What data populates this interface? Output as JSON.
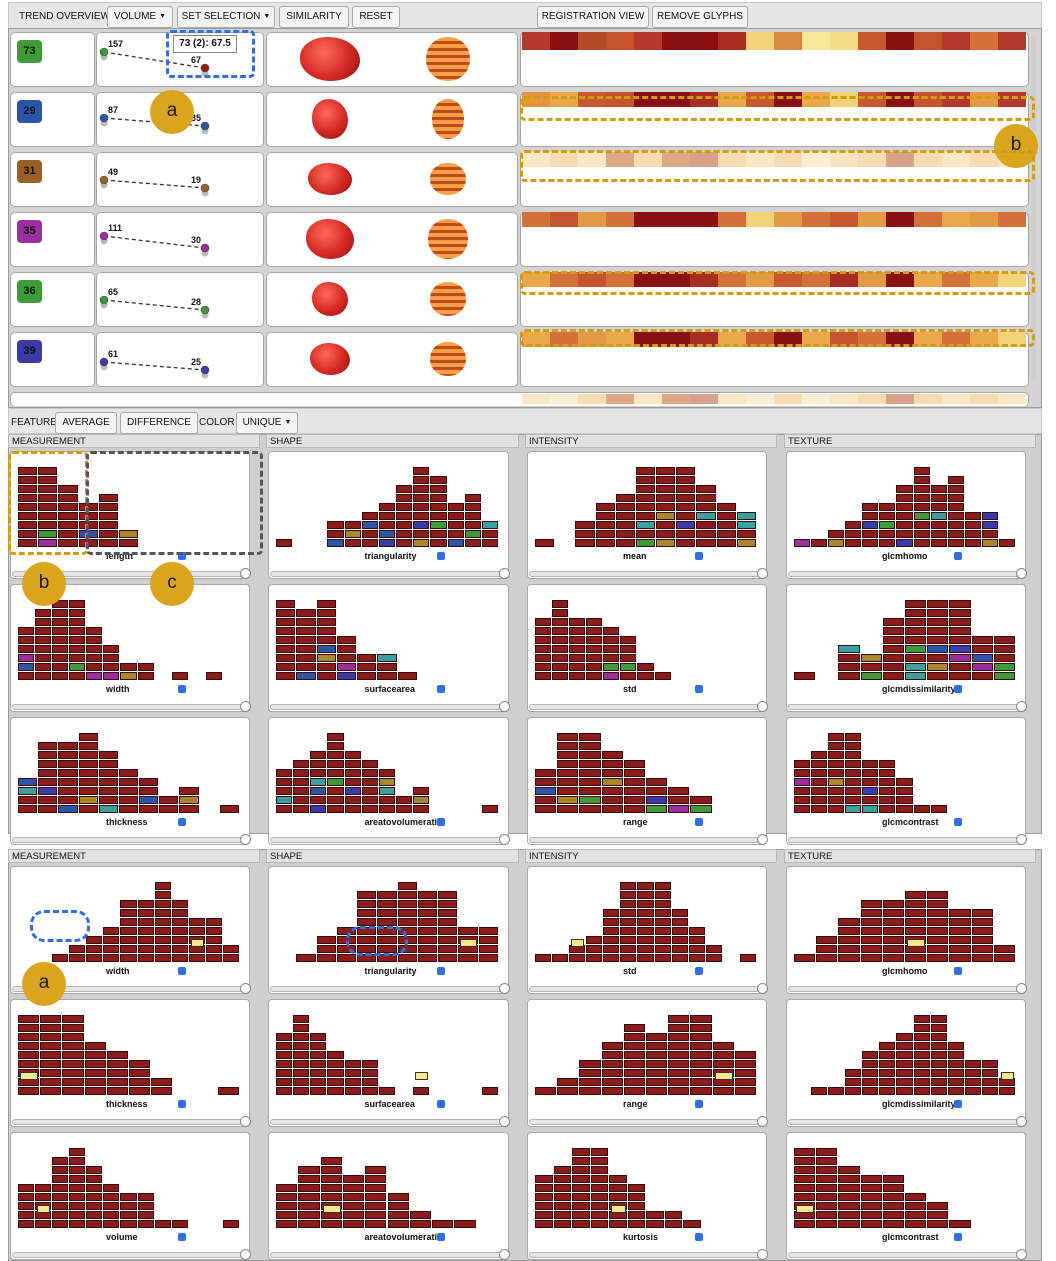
{
  "toolbar": {
    "title": "TREND OVERVIEW",
    "volume": "VOLUME",
    "set_selection": "SET SELECTION",
    "similarity": "SIMILARITY",
    "reset": "RESET",
    "registration_view": "REGISTRATION VIEW",
    "remove_glyphs": "REMOVE GLYPHS"
  },
  "trend_rows": [
    {
      "id": "73",
      "color": "#3f9a3a",
      "start": "157",
      "end": "67"
    },
    {
      "id": "29",
      "color": "#2c54a8",
      "start": "87",
      "end": "35"
    },
    {
      "id": "31",
      "color": "#9a5f24",
      "start": "49",
      "end": "19"
    },
    {
      "id": "35",
      "color": "#9b2f9c",
      "start": "111",
      "end": "30"
    },
    {
      "id": "36",
      "color": "#3f9a3a",
      "start": "65",
      "end": "28"
    },
    {
      "id": "39",
      "color": "#3a3aa8",
      "start": "61",
      "end": "25"
    }
  ],
  "tooltip": "73 (2): 67.5",
  "feature_bar": {
    "feature": "FEATURE",
    "average": "AVERAGE",
    "difference": "DIFFERENCE",
    "color": "COLOR",
    "unique": "UNIQUE"
  },
  "categories": [
    "MEASUREMENT",
    "SHAPE",
    "INTENSITY",
    "TEXTURE"
  ],
  "top_panels": [
    [
      "length",
      "width",
      "thickness"
    ],
    [
      "triangularity",
      "surfacearea",
      "areatovolumeratio"
    ],
    [
      "mean",
      "std",
      "range"
    ],
    [
      "glcmhomo",
      "glcmdissimilarity",
      "glcmcontrast"
    ]
  ],
  "bottom_panels": [
    [
      "width",
      "thickness",
      "volume"
    ],
    [
      "triangularity",
      "surfacearea",
      "areatovolumeratio"
    ],
    [
      "std",
      "range",
      "kurtosis"
    ],
    [
      "glcmhomo",
      "glcmdissimilarity",
      "glcmcontrast"
    ]
  ],
  "badges": {
    "a": "a",
    "b": "b",
    "c": "c"
  },
  "colors": {
    "bar": "#8b1c1c",
    "highlight": "#f7e98a",
    "annotation_gold": "#d9a51c",
    "annotation_blue": "#2f6fe0"
  }
}
